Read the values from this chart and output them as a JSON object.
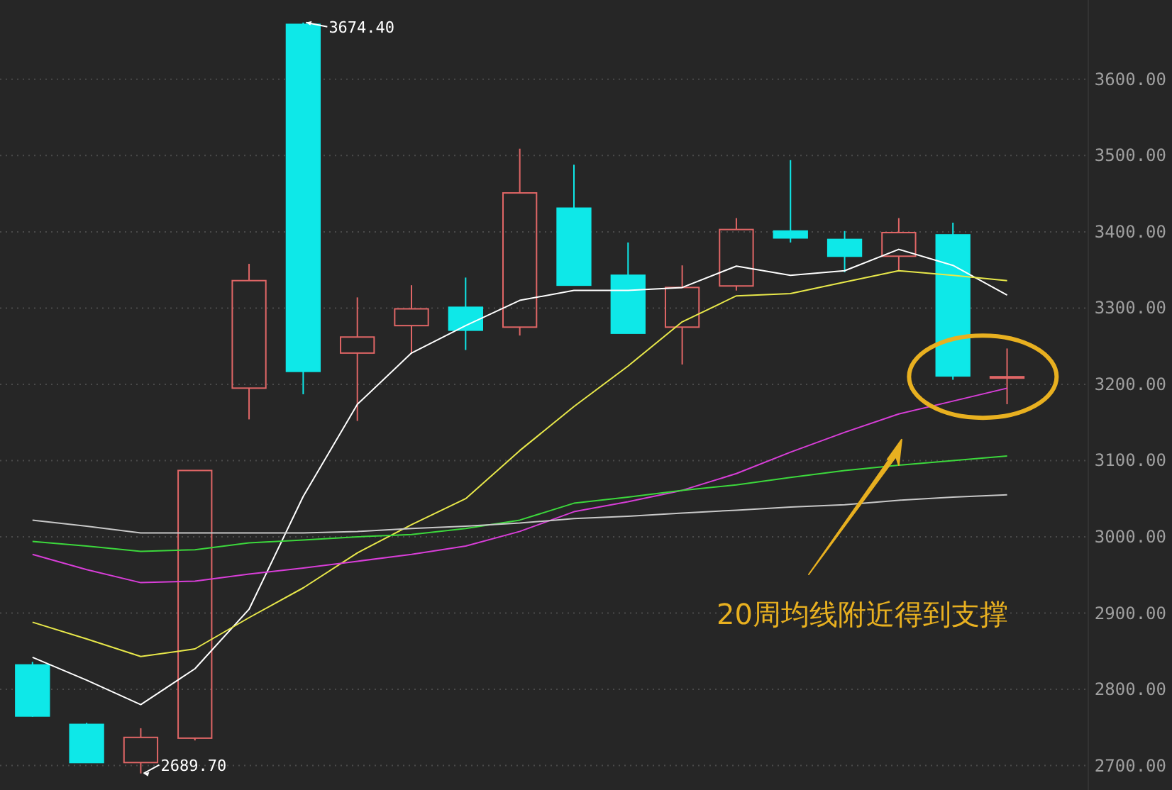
{
  "chart_data": {
    "type": "candlestick",
    "categories": [
      null,
      null,
      null,
      null,
      null,
      null,
      null,
      null,
      null,
      null,
      null,
      null,
      null,
      null,
      null,
      null,
      null,
      null,
      null
    ],
    "ohlc": [
      [
        2832,
        2836,
        2764,
        2765
      ],
      [
        2754,
        2756,
        2704,
        2704
      ],
      [
        2704,
        2749,
        2689.7,
        2737
      ],
      [
        2736,
        3087,
        2733,
        3087
      ],
      [
        3195,
        3358,
        3154,
        3336
      ],
      [
        3672,
        3674.4,
        3187,
        3217
      ],
      [
        3241,
        3314,
        3152,
        3262
      ],
      [
        3277,
        3330,
        3240,
        3299
      ],
      [
        3301,
        3340,
        3245,
        3271
      ],
      [
        3275,
        3509,
        3264,
        3451
      ],
      [
        3431,
        3488,
        3330,
        3330
      ],
      [
        3343,
        3386,
        3267,
        3267
      ],
      [
        3275,
        3356,
        3226,
        3327
      ],
      [
        3329,
        3418,
        3323,
        3403
      ],
      [
        3401,
        3494,
        3386,
        3392
      ],
      [
        3390,
        3401,
        3347,
        3368
      ],
      [
        3368,
        3418,
        3349,
        3399
      ],
      [
        3396,
        3412,
        3206,
        3211
      ],
      [
        3209,
        3247,
        3174,
        3210
      ]
    ],
    "colors": [
      "#0ee8e8",
      "#0ee8e8",
      "#e06666",
      "#e06666",
      "#e06666",
      "#0ee8e8",
      "#e06666",
      "#e06666",
      "#0ee8e8",
      "#e06666",
      "#0ee8e8",
      "#0ee8e8",
      "#e06666",
      "#e06666",
      "#0ee8e8",
      "#0ee8e8",
      "#e06666",
      "#0ee8e8",
      "#e06666"
    ],
    "series": [
      {
        "type": "line",
        "color": "#ffffff",
        "values": [
          2842,
          2812,
          2780,
          2827,
          2905,
          3053,
          3174,
          3241,
          3277,
          3310,
          3323,
          3323,
          3327,
          3355,
          3343,
          3349,
          3377,
          3356,
          3317
        ]
      },
      {
        "type": "line",
        "color": "#e8e84a",
        "values": [
          2888,
          2866,
          2843,
          2853,
          2894,
          2933,
          2979,
          3016,
          3050,
          3113,
          3171,
          3224,
          3282,
          3316,
          3319,
          3334,
          3349,
          3343,
          3336
        ]
      },
      {
        "type": "line",
        "color": "#d83ed8",
        "values": [
          2977,
          2957,
          2940,
          2942,
          2951,
          2959,
          2968,
          2977,
          2988,
          3007,
          3033,
          3046,
          3061,
          3083,
          3111,
          3137,
          3161,
          3178,
          3195
        ]
      },
      {
        "type": "line",
        "color": "#3cd83c",
        "values": [
          2994,
          2988,
          2981,
          2983,
          2992,
          2996,
          3000,
          3003,
          3011,
          3022,
          3044,
          3052,
          3061,
          3068,
          3078,
          3087,
          3094,
          3100,
          3106
        ]
      },
      {
        "type": "line",
        "color": "#c8c8c8",
        "values": [
          3022,
          3014,
          3005,
          3005,
          3005,
          3005,
          3007,
          3011,
          3014,
          3018,
          3024,
          3027,
          3031,
          3035,
          3039,
          3042,
          3048,
          3052,
          3055
        ]
      }
    ],
    "ylim": [
      2668,
      3704
    ],
    "yticks": [
      {
        "value": 2700,
        "label": "2700.00"
      },
      {
        "value": 2800,
        "label": "2800.00"
      },
      {
        "value": 2900,
        "label": "2900.00"
      },
      {
        "value": 3000,
        "label": "3000.00"
      },
      {
        "value": 3100,
        "label": "3100.00"
      },
      {
        "value": 3200,
        "label": "3200.00"
      },
      {
        "value": 3300,
        "label": "3300.00"
      },
      {
        "value": 3400,
        "label": "3400.00"
      },
      {
        "value": 3500,
        "label": "3500.00"
      },
      {
        "value": 3600,
        "label": "3600.00"
      }
    ],
    "tick_labels": "y",
    "grid": "y",
    "annotations": [
      "3674.40",
      "2689.70",
      "20周均线附近得到支撑"
    ]
  }
}
